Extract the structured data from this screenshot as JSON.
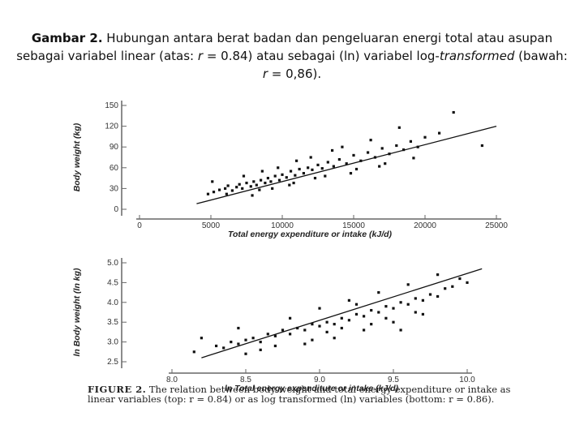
{
  "caption": {
    "label": "Gambar 2.",
    "text1": " Hubungan antara berat badan dan pengeluaran energi total atau asupan sebagai variabel linear (atas: ",
    "r1_var": "r",
    "r1_val": " = 0.84) atau sebagai (ln) variabel log-",
    "transformed": "transformed",
    "text2": " (bawah: ",
    "r2_var": "r",
    "r2_val": " = 0,86)."
  },
  "figure_caption": {
    "label": "FIGURE 2.",
    "text": " The relation between body weight and total energy expenditure or intake as linear variables (top: r = 0.84) or as log transformed (ln) variables (bottom: r = 0.86)."
  },
  "chart_data": [
    {
      "type": "scatter",
      "title": "",
      "xlabel": "Total energy expenditure or intake (kJ/d)",
      "ylabel": "Body weight (kg)",
      "xlim": [
        0,
        25000
      ],
      "ylim": [
        0,
        150
      ],
      "xticks": [
        "0",
        "5000",
        "10000",
        "15000",
        "20000",
        "25000"
      ],
      "yticks": [
        "0",
        "30",
        "60",
        "90",
        "120",
        "150"
      ],
      "regression_line": {
        "x": [
          4000,
          25000
        ],
        "y": [
          8,
          120
        ]
      },
      "points": [
        [
          5200,
          25
        ],
        [
          5600,
          28
        ],
        [
          6000,
          30
        ],
        [
          6200,
          34
        ],
        [
          6500,
          27
        ],
        [
          6800,
          32
        ],
        [
          7000,
          36
        ],
        [
          7200,
          30
        ],
        [
          7500,
          38
        ],
        [
          7800,
          33
        ],
        [
          8000,
          40
        ],
        [
          8200,
          35
        ],
        [
          8500,
          42
        ],
        [
          8800,
          38
        ],
        [
          9000,
          45
        ],
        [
          9200,
          40
        ],
        [
          9500,
          48
        ],
        [
          9800,
          42
        ],
        [
          10000,
          50
        ],
        [
          10300,
          46
        ],
        [
          10600,
          55
        ],
        [
          10900,
          49
        ],
        [
          11200,
          58
        ],
        [
          11500,
          52
        ],
        [
          11800,
          60
        ],
        [
          12100,
          57
        ],
        [
          12500,
          64
        ],
        [
          12800,
          59
        ],
        [
          13200,
          68
        ],
        [
          13600,
          62
        ],
        [
          14000,
          72
        ],
        [
          14500,
          66
        ],
        [
          15000,
          78
        ],
        [
          15500,
          70
        ],
        [
          16000,
          82
        ],
        [
          16500,
          75
        ],
        [
          17000,
          88
        ],
        [
          17500,
          80
        ],
        [
          18000,
          92
        ],
        [
          18500,
          86
        ],
        [
          19000,
          98
        ],
        [
          19500,
          90
        ],
        [
          20000,
          104
        ],
        [
          21000,
          110
        ],
        [
          22000,
          140
        ],
        [
          24000,
          92
        ],
        [
          4800,
          22
        ],
        [
          5100,
          40
        ],
        [
          6100,
          22
        ],
        [
          7300,
          48
        ],
        [
          8400,
          28
        ],
        [
          9700,
          60
        ],
        [
          10800,
          38
        ],
        [
          12000,
          75
        ],
        [
          13000,
          48
        ],
        [
          14200,
          90
        ],
        [
          15200,
          58
        ],
        [
          16200,
          100
        ],
        [
          17200,
          66
        ],
        [
          18200,
          118
        ],
        [
          19200,
          74
        ],
        [
          8600,
          55
        ],
        [
          11000,
          70
        ],
        [
          13500,
          85
        ],
        [
          7900,
          20
        ],
        [
          9300,
          30
        ],
        [
          10500,
          35
        ],
        [
          12300,
          45
        ],
        [
          14800,
          52
        ],
        [
          16800,
          62
        ]
      ]
    },
    {
      "type": "scatter",
      "title": "",
      "xlabel": "ln Total energy expenditure or intake (kJ/d)",
      "ylabel": "ln Body weight (ln kg)",
      "xlim": [
        8.0,
        10.0
      ],
      "ylim": [
        2.5,
        5.0
      ],
      "xticks": [
        "8.0",
        "8.5",
        "9.0",
        "9.5",
        "10.0"
      ],
      "yticks": [
        "2.5",
        "3.0",
        "3.5",
        "4.0",
        "4.5",
        "5.0"
      ],
      "regression_line": {
        "x": [
          8.2,
          10.1
        ],
        "y": [
          2.6,
          4.85
        ]
      },
      "points": [
        [
          8.3,
          2.9
        ],
        [
          8.35,
          2.85
        ],
        [
          8.4,
          3.0
        ],
        [
          8.45,
          2.95
        ],
        [
          8.5,
          3.05
        ],
        [
          8.55,
          3.1
        ],
        [
          8.6,
          3.0
        ],
        [
          8.65,
          3.2
        ],
        [
          8.7,
          3.15
        ],
        [
          8.75,
          3.3
        ],
        [
          8.8,
          3.2
        ],
        [
          8.85,
          3.35
        ],
        [
          8.9,
          3.3
        ],
        [
          8.95,
          3.45
        ],
        [
          9.0,
          3.4
        ],
        [
          9.05,
          3.5
        ],
        [
          9.1,
          3.45
        ],
        [
          9.15,
          3.6
        ],
        [
          9.2,
          3.55
        ],
        [
          9.25,
          3.7
        ],
        [
          9.3,
          3.65
        ],
        [
          9.35,
          3.8
        ],
        [
          9.4,
          3.75
        ],
        [
          9.45,
          3.9
        ],
        [
          9.5,
          3.85
        ],
        [
          9.55,
          4.0
        ],
        [
          9.6,
          3.95
        ],
        [
          9.65,
          4.1
        ],
        [
          9.7,
          4.05
        ],
        [
          9.75,
          4.2
        ],
        [
          9.8,
          4.15
        ],
        [
          9.85,
          4.35
        ],
        [
          9.9,
          4.4
        ],
        [
          9.95,
          4.6
        ],
        [
          10.0,
          4.5
        ],
        [
          8.15,
          2.75
        ],
        [
          8.2,
          3.1
        ],
        [
          8.45,
          3.35
        ],
        [
          8.6,
          2.8
        ],
        [
          8.8,
          3.6
        ],
        [
          8.9,
          2.95
        ],
        [
          9.0,
          3.85
        ],
        [
          9.1,
          3.1
        ],
        [
          9.2,
          4.05
        ],
        [
          9.3,
          3.3
        ],
        [
          9.4,
          4.25
        ],
        [
          9.5,
          3.5
        ],
        [
          9.6,
          4.45
        ],
        [
          9.7,
          3.7
        ],
        [
          9.8,
          4.7
        ],
        [
          9.55,
          3.3
        ],
        [
          9.25,
          3.95
        ],
        [
          8.7,
          2.9
        ],
        [
          9.05,
          3.25
        ],
        [
          9.35,
          3.45
        ],
        [
          9.65,
          3.75
        ],
        [
          8.5,
          2.7
        ],
        [
          8.95,
          3.05
        ],
        [
          9.15,
          3.35
        ],
        [
          9.45,
          3.6
        ]
      ]
    }
  ]
}
